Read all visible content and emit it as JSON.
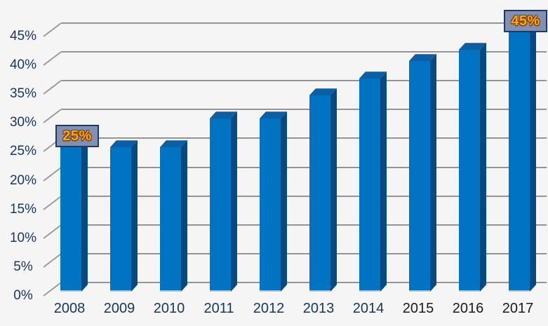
{
  "chart_data": {
    "type": "bar",
    "title": "",
    "xlabel": "",
    "ylabel": "",
    "categories": [
      "2008",
      "2009",
      "2010",
      "2011",
      "2012",
      "2013",
      "2014",
      "2015",
      "2016",
      "2017"
    ],
    "values": [
      25,
      25,
      25,
      30,
      30,
      34,
      37,
      40,
      42,
      45
    ],
    "unit": "%",
    "ylim": [
      0,
      45
    ],
    "ytick_step": 5,
    "ytick_labels": [
      "0%",
      "5%",
      "10%",
      "15%",
      "20%",
      "25%",
      "30%",
      "35%",
      "40%",
      "45%"
    ],
    "grid": true,
    "legend": false,
    "style_3d": true,
    "annotations": [
      {
        "category": "2008",
        "text": "25%"
      },
      {
        "category": "2017",
        "text": "45%"
      }
    ],
    "xtick_colors": [
      "#17365D",
      "#17365D",
      "#17365D",
      "#17365D",
      "#17365D",
      "#17365D",
      "#17365D",
      "#1B1B1B",
      "#1B1B1B",
      "#1B1B1B"
    ]
  },
  "colors": {
    "background": "#F5F5F6",
    "bar_front": "#0073C2",
    "bar_side": "#064A80",
    "bar_top": "#0A5FA5",
    "gridline": "#8C8C8C",
    "axis_text": "#17365D",
    "callout_fill": "#8191B3",
    "callout_border": "#1F3864",
    "callout_text": "#FFA41C"
  }
}
